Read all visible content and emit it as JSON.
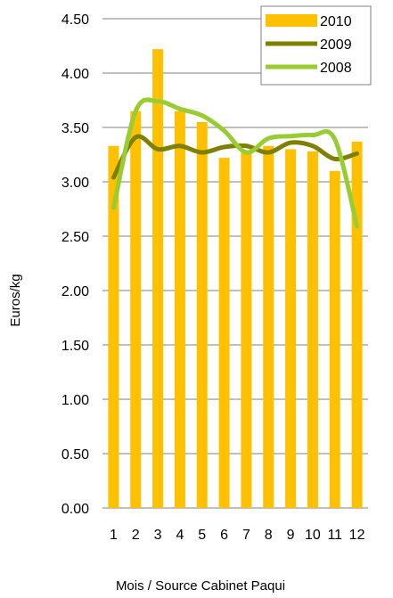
{
  "chart_data": {
    "type": "bar",
    "categories": [
      "1",
      "2",
      "3",
      "4",
      "5",
      "6",
      "7",
      "8",
      "9",
      "10",
      "11",
      "12"
    ],
    "series": [
      {
        "name": "2010",
        "type": "bar",
        "color": "#FFC000",
        "values": [
          3.33,
          3.65,
          4.22,
          3.65,
          3.55,
          3.22,
          3.29,
          3.33,
          3.3,
          3.28,
          3.1,
          3.37
        ]
      },
      {
        "name": "2009",
        "type": "line",
        "color": "#7F7F00",
        "values": [
          3.04,
          3.41,
          3.3,
          3.33,
          3.27,
          3.32,
          3.33,
          3.27,
          3.36,
          3.33,
          3.21,
          3.26
        ]
      },
      {
        "name": "2008",
        "type": "line",
        "color": "#99CC33",
        "values": [
          2.76,
          3.65,
          3.74,
          3.67,
          3.61,
          3.47,
          3.27,
          3.4,
          3.42,
          3.43,
          3.39,
          2.59
        ]
      }
    ],
    "ylim": [
      0,
      4.5
    ],
    "yticks": [
      "0.00",
      "0.50",
      "1.00",
      "1.50",
      "2.00",
      "2.50",
      "3.00",
      "3.50",
      "4.00",
      "4.50"
    ],
    "ylabel": "Euros/kg",
    "xlabel": "Mois / Source Cabinet Paqui",
    "grid": true,
    "legend": "top-right"
  }
}
